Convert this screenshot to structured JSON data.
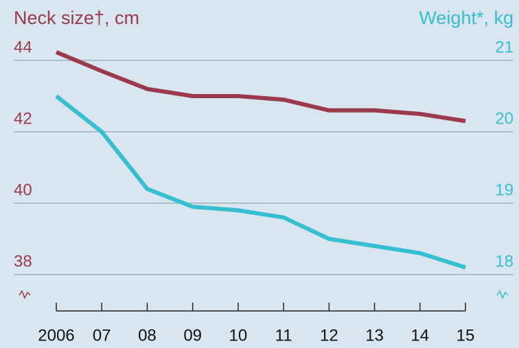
{
  "chart_data": {
    "type": "line",
    "ylabel": "Neck size†, cm",
    "y2label": "Weight*, kg",
    "categories": [
      "2006",
      "07",
      "08",
      "09",
      "10",
      "11",
      "12",
      "13",
      "14",
      "15"
    ],
    "series": [
      {
        "name": "Neck size",
        "color": "#9b3a4c",
        "values": [
          44.23,
          43.7,
          43.2,
          43.0,
          43.0,
          42.9,
          42.6,
          42.6,
          42.5,
          42.3
        ]
      },
      {
        "name": "Weight",
        "color": "#36bfd0",
        "axis": "y2",
        "values": [
          20.5,
          20.0,
          19.2,
          18.95,
          18.9,
          18.8,
          18.5,
          18.4,
          18.3,
          18.1
        ]
      }
    ],
    "ylim": [
      38,
      44
    ],
    "yticks": [
      38,
      40,
      42,
      44
    ],
    "y2lim": [
      18,
      21
    ],
    "y2ticks": [
      18,
      19,
      20,
      21
    ],
    "grid": true
  }
}
